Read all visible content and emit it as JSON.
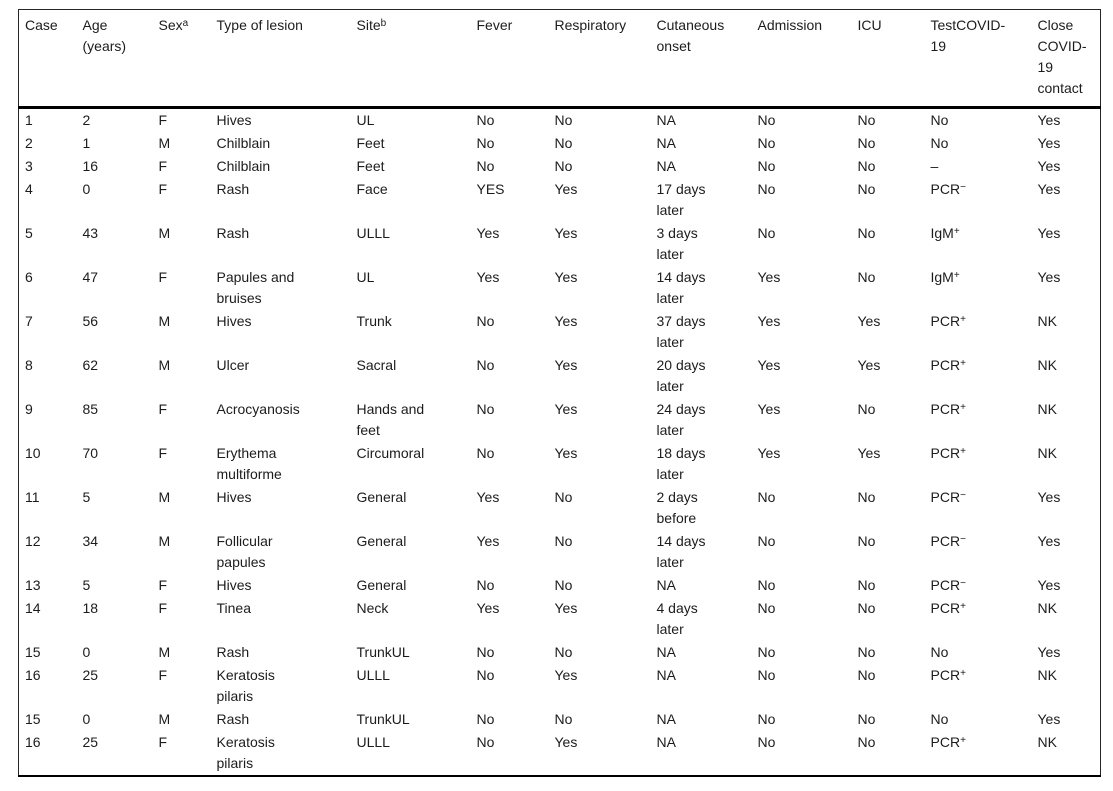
{
  "page": {
    "background_color": "#ffffff",
    "text_color": "#1c1c1c",
    "rule_color": "#000000"
  },
  "table": {
    "superscript_marker": "^",
    "columns": [
      "Case",
      "Age (years)",
      "Sex^a",
      "Type of lesion",
      "Site^b",
      "Fever",
      "Respiratory",
      "Cutaneous onset",
      "Admission",
      "ICU",
      "TestCOVID-19",
      "Close COVID-19 contact"
    ],
    "rows": [
      [
        "1",
        "2",
        "F",
        "Hives",
        "UL",
        "No",
        "No",
        "NA",
        "No",
        "No",
        "No",
        "Yes"
      ],
      [
        "2",
        "1",
        "M",
        "Chilblain",
        "Feet",
        "No",
        "No",
        "NA",
        "No",
        "No",
        "No",
        "Yes"
      ],
      [
        "3",
        "16",
        "F",
        "Chilblain",
        "Feet",
        "No",
        "No",
        "NA",
        "No",
        "No",
        "–",
        "Yes"
      ],
      [
        "4",
        "0",
        "F",
        "Rash",
        "Face",
        "YES",
        "Yes",
        "17 days later",
        "No",
        "No",
        "PCR^−",
        "Yes"
      ],
      [
        "5",
        "43",
        "M",
        "Rash",
        "ULLL",
        "Yes",
        "Yes",
        "3 days later",
        "No",
        "No",
        "IgM^+",
        "Yes"
      ],
      [
        "6",
        "47",
        "F",
        "Papules and bruises",
        "UL",
        "Yes",
        "Yes",
        "14 days later",
        "Yes",
        "No",
        "IgM^+",
        "Yes"
      ],
      [
        "7",
        "56",
        "M",
        "Hives",
        "Trunk",
        "No",
        "Yes",
        "37 days later",
        "Yes",
        "Yes",
        "PCR^+",
        "NK"
      ],
      [
        "8",
        "62",
        "M",
        "Ulcer",
        "Sacral",
        "No",
        "Yes",
        "20 days later",
        "Yes",
        "Yes",
        "PCR^+",
        "NK"
      ],
      [
        "9",
        "85",
        "F",
        "Acrocyanosis",
        "Hands and feet",
        "No",
        "Yes",
        "24 days later",
        "Yes",
        "No",
        "PCR^+",
        "NK"
      ],
      [
        "10",
        "70",
        "F",
        "Erythema multiforme",
        "Circumoral",
        "No",
        "Yes",
        "18 days later",
        "Yes",
        "Yes",
        "PCR^+",
        "NK"
      ],
      [
        "11",
        "5",
        "M",
        "Hives",
        "General",
        "Yes",
        "No",
        "2 days before",
        "No",
        "No",
        "PCR^−",
        "Yes"
      ],
      [
        "12",
        "34",
        "M",
        "Follicular papules",
        "General",
        "Yes",
        "No",
        "14 days later",
        "No",
        "No",
        "PCR^−",
        "Yes"
      ],
      [
        "13",
        "5",
        "F",
        "Hives",
        "General",
        "No",
        "No",
        "NA",
        "No",
        "No",
        "PCR^−",
        "Yes"
      ],
      [
        "14",
        "18",
        "F",
        "Tinea",
        "Neck",
        "Yes",
        "Yes",
        "4 days later",
        "No",
        "No",
        "PCR^+",
        "NK"
      ],
      [
        "15",
        "0",
        "M",
        "Rash",
        "TrunkUL",
        "No",
        "No",
        "NA",
        "No",
        "No",
        "No",
        "Yes"
      ],
      [
        "16",
        "25",
        "F",
        "Keratosis pilaris",
        "ULLL",
        "No",
        "Yes",
        "NA",
        "No",
        "No",
        "PCR^+",
        "NK"
      ],
      [
        "15",
        "0",
        "M",
        "Rash",
        "TrunkUL",
        "No",
        "No",
        "NA",
        "No",
        "No",
        "No",
        "Yes"
      ],
      [
        "16",
        "25",
        "F",
        "Keratosis pilaris",
        "ULLL",
        "No",
        "Yes",
        "NA",
        "No",
        "No",
        "PCR^+",
        "NK"
      ]
    ]
  }
}
